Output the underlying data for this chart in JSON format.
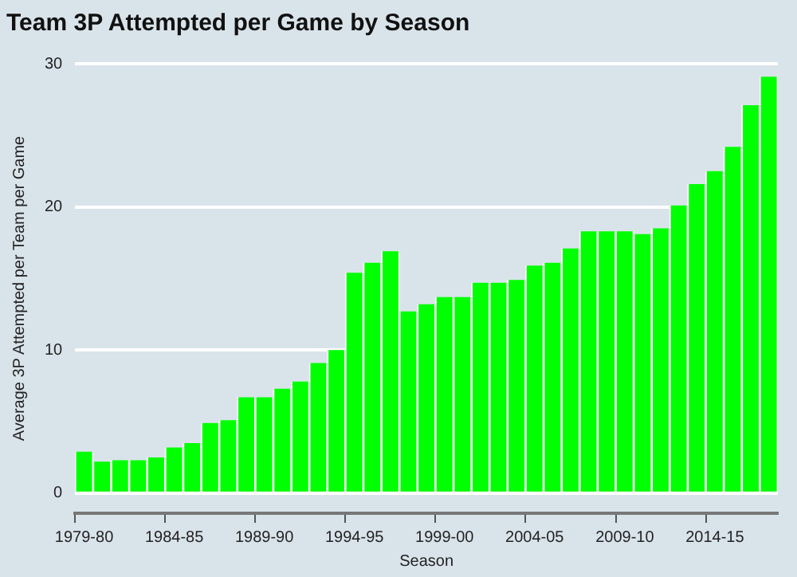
{
  "chart_data": {
    "type": "bar",
    "title": "Team 3P Attempted per Game by Season",
    "xlabel": "Season",
    "ylabel": "Average 3P Attempted per Team per Game",
    "categories": [
      "1979-80",
      null,
      null,
      null,
      null,
      "1984-85",
      null,
      null,
      null,
      null,
      "1989-90",
      null,
      null,
      null,
      null,
      "1994-95",
      null,
      null,
      null,
      null,
      "1999-00",
      null,
      null,
      null,
      null,
      "2004-05",
      null,
      null,
      null,
      null,
      "2009-10",
      null,
      null,
      null,
      null,
      "2014-15",
      null,
      null,
      null
    ],
    "values": [
      2.9,
      2.2,
      2.3,
      2.3,
      2.5,
      3.2,
      3.5,
      4.9,
      5.1,
      6.7,
      6.7,
      7.3,
      7.8,
      9.1,
      10.0,
      15.4,
      16.1,
      16.9,
      12.7,
      13.2,
      13.7,
      13.7,
      14.7,
      14.7,
      14.9,
      15.9,
      16.1,
      17.1,
      18.3,
      18.3,
      18.3,
      18.1,
      18.5,
      20.1,
      21.6,
      22.5,
      24.2,
      27.1,
      29.1
    ],
    "color": "#00ff00",
    "ylim": [
      -1.4,
      30
    ],
    "yticks": [
      0,
      10,
      20,
      30
    ],
    "grid": "y",
    "legend": false
  }
}
